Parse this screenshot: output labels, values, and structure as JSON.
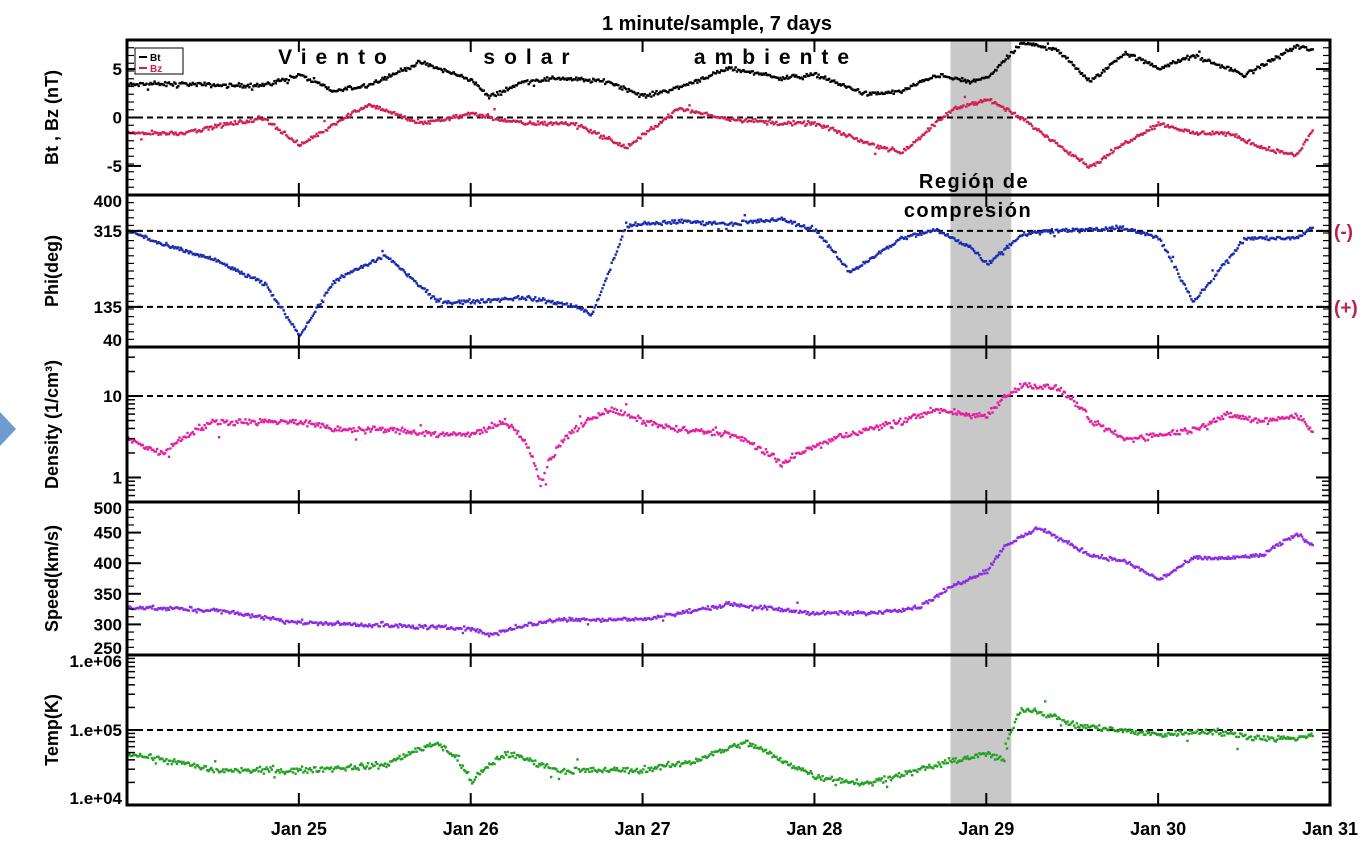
{
  "chart_data": {
    "type": "scatter",
    "title": "1 minute/sample, 7 days",
    "x": {
      "ticks": [
        "Jan 25",
        "Jan 26",
        "Jan 27",
        "Jan 28",
        "Jan 29",
        "Jan 30",
        "Jan 31"
      ],
      "range": [
        "Jan 24 00:00",
        "Jan 31 00:00"
      ]
    },
    "shaded_interval": {
      "start": "Jan 28 19:00",
      "end": "Jan 29 03:30",
      "label": "Región de compresión",
      "color": "#c8c8c8"
    },
    "banner": [
      "Viento",
      "solar",
      "ambiente"
    ],
    "panels": [
      {
        "id": "b",
        "ylabel": "Bt , Bz (nT)",
        "ylim": [
          -8,
          8
        ],
        "scale": "linear",
        "yticks": [
          "5",
          "0",
          "-5"
        ],
        "ytick_values": [
          5,
          0,
          -5
        ],
        "ref_lines": [
          0
        ],
        "legend": [
          "Bt",
          "Bz"
        ],
        "series": [
          {
            "name": "Bt",
            "color": "#000000",
            "knots_day": [
              0,
              0.3,
              0.6,
              0.8,
              1.0,
              1.2,
              1.4,
              1.7,
              2.0,
              2.1,
              2.3,
              2.5,
              2.8,
              3.0,
              3.2,
              3.5,
              3.8,
              4.0,
              4.3,
              4.5,
              4.7,
              4.9,
              5.0,
              5.2,
              5.4,
              5.6,
              5.8,
              6.0,
              6.2,
              6.5,
              6.8,
              6.9
            ],
            "knots_val": [
              3.5,
              3.6,
              3.4,
              3.5,
              4.5,
              2.8,
              3.5,
              5.8,
              4,
              2.2,
              3.8,
              4.2,
              3.8,
              2.3,
              3.2,
              5.2,
              4.2,
              4.5,
              2.5,
              2.8,
              4.5,
              3.8,
              4.2,
              7.8,
              7.2,
              3.8,
              6.8,
              5.2,
              6.5,
              4.5,
              7.5,
              7
            ]
          },
          {
            "name": "Bz",
            "color": "#d02050",
            "knots_day": [
              0,
              0.3,
              0.6,
              0.8,
              1.0,
              1.2,
              1.4,
              1.7,
              2.0,
              2.3,
              2.6,
              2.9,
              3.2,
              3.5,
              3.8,
              4.0,
              4.3,
              4.5,
              4.8,
              5.0,
              5.2,
              5.4,
              5.6,
              5.8,
              6.0,
              6.2,
              6.4,
              6.6,
              6.8,
              6.9
            ],
            "knots_val": [
              -1.5,
              -1.5,
              -0.5,
              0,
              -2.8,
              -0.5,
              1.5,
              -0.5,
              0.5,
              -0.5,
              -0.5,
              -3,
              1,
              0,
              -0.5,
              -0.5,
              -2.5,
              -3.5,
              1,
              2,
              0,
              -2.5,
              -5,
              -2.5,
              -0.5,
              -1.5,
              -1.5,
              -3,
              -3.8,
              -1
            ]
          }
        ]
      },
      {
        "id": "phi",
        "ylabel": "Phi(deg)",
        "ylim": [
          40,
          400
        ],
        "scale": "linear",
        "yticks": [
          "400",
          "315",
          "135",
          "40"
        ],
        "ytick_values": [
          400,
          315,
          135,
          40
        ],
        "ref_lines": [
          315,
          135
        ],
        "ref_labels": [
          "(-)",
          "(+)"
        ],
        "series": [
          {
            "name": "Phi",
            "color": "#1a2bb0",
            "knots_day": [
              0,
              0.2,
              0.5,
              0.8,
              1.0,
              1.2,
              1.5,
              1.8,
              2.0,
              2.3,
              2.6,
              2.7,
              2.9,
              3.2,
              3.5,
              3.8,
              4.0,
              4.2,
              4.5,
              4.7,
              4.9,
              5.0,
              5.2,
              5.4,
              5.6,
              5.8,
              6.0,
              6.2,
              6.5,
              6.8,
              6.9
            ],
            "knots_val": [
              320,
              285,
              250,
              190,
              70,
              200,
              260,
              150,
              150,
              160,
              140,
              120,
              330,
              340,
              335,
              345,
              320,
              220,
              300,
              320,
              280,
              240,
              310,
              320,
              320,
              325,
              300,
              150,
              300,
              300,
              330
            ]
          }
        ]
      },
      {
        "id": "density",
        "ylabel": "Density (1/cm³)",
        "ylim": [
          0.5,
          40
        ],
        "scale": "log",
        "yticks": [
          "10",
          "1"
        ],
        "ytick_values": [
          10,
          1
        ],
        "ref_lines": [
          10
        ],
        "series": [
          {
            "name": "Density",
            "color": "#e020a0",
            "knots_day": [
              0,
              0.2,
              0.5,
              1.0,
              1.2,
              1.5,
              1.8,
              2.0,
              2.2,
              2.4,
              2.6,
              2.8,
              3.0,
              3.2,
              3.5,
              3.8,
              4.0,
              4.3,
              4.5,
              4.7,
              4.9,
              5.0,
              5.2,
              5.4,
              5.6,
              5.8,
              6.0,
              6.2,
              6.4,
              6.6,
              6.8,
              6.9
            ],
            "knots_val": [
              3,
              2,
              5,
              5,
              4,
              4,
              3.5,
              3.5,
              5,
              0.8,
              4,
              7,
              5,
              4,
              3.5,
              1.5,
              2.5,
              4,
              5,
              7,
              6,
              6,
              14,
              13,
              5,
              3,
              3.5,
              4,
              6,
              5,
              6,
              3.5
            ]
          }
        ]
      },
      {
        "id": "speed",
        "ylabel": "Speed(km/s)",
        "ylim": [
          250,
          500
        ],
        "scale": "linear",
        "yticks": [
          "500",
          "450",
          "400",
          "350",
          "300",
          "250"
        ],
        "ytick_values": [
          500,
          450,
          400,
          350,
          300,
          250
        ],
        "ref_lines": [],
        "series": [
          {
            "name": "Speed",
            "color": "#8a2be2",
            "knots_day": [
              0,
              0.5,
              1.0,
              1.5,
              2.0,
              2.1,
              2.3,
              2.5,
              3.0,
              3.5,
              4.0,
              4.3,
              4.6,
              4.8,
              5.0,
              5.1,
              5.3,
              5.6,
              5.8,
              6.0,
              6.2,
              6.4,
              6.6,
              6.8,
              6.9
            ],
            "knots_val": [
              330,
              325,
              305,
              300,
              295,
              285,
              300,
              310,
              310,
              335,
              320,
              320,
              330,
              365,
              390,
              430,
              460,
              415,
              405,
              375,
              410,
              410,
              415,
              450,
              430
            ]
          }
        ]
      },
      {
        "id": "temp",
        "ylabel": "Temp(K)",
        "ylim": [
          10000,
          1000000
        ],
        "scale": "log",
        "yticks": [
          "1.e+06",
          "1.e+05",
          "1.e+04"
        ],
        "ytick_values": [
          1000000,
          100000,
          10000
        ],
        "ref_lines": [
          100000
        ],
        "series": [
          {
            "name": "Temp",
            "color": "#22a022",
            "knots_day": [
              0,
              0.5,
              1.0,
              1.5,
              1.8,
              2.0,
              2.2,
              2.5,
              3.0,
              3.3,
              3.6,
              3.8,
              4.0,
              4.3,
              4.6,
              4.8,
              5.0,
              5.1,
              5.2,
              5.3,
              5.5,
              5.8,
              6.0,
              6.3,
              6.6,
              6.8,
              6.9
            ],
            "knots_val": [
              50000,
              30000,
              30000,
              35000,
              70000,
              20000,
              50000,
              30000,
              30000,
              40000,
              70000,
              40000,
              25000,
              20000,
              30000,
              40000,
              50000,
              40000,
              200000,
              180000,
              120000,
              100000,
              90000,
              100000,
              80000,
              80000,
              90000
            ]
          }
        ]
      }
    ]
  }
}
